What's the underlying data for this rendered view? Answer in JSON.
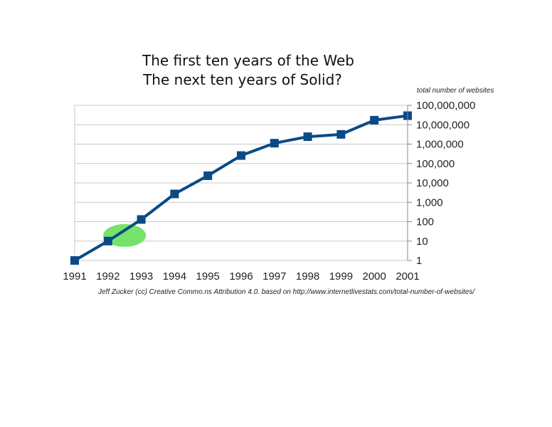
{
  "chart_data": {
    "type": "line",
    "title": "The first ten years of the Web",
    "subtitle": "The next ten years of Solid?",
    "ylabel": "total number of websites",
    "xlabel": "",
    "y_scale": "log",
    "ylim": [
      1,
      100000000
    ],
    "y_ticks": [
      1,
      10,
      100,
      1000,
      10000,
      100000,
      1000000,
      10000000,
      100000000
    ],
    "y_tick_labels": [
      "1",
      "10",
      "100",
      "1,000",
      "10,000",
      "100,000",
      "1,000,000",
      "10,000,000",
      "100,000,000"
    ],
    "y_axis_side": "right",
    "categories": [
      "1991",
      "1992",
      "1993",
      "1994",
      "1995",
      "1996",
      "1997",
      "1998",
      "1999",
      "2000",
      "2001"
    ],
    "series": [
      {
        "values": [
          1,
          10,
          130,
          2700,
          23500,
          257601,
          1117255,
          2410067,
          3177453,
          17087182,
          29254370
        ],
        "color": "#0b4a86",
        "marker": "square"
      }
    ],
    "grid": true,
    "legend": "none",
    "highlight": {
      "category": "1992.5",
      "color": "#66e05c",
      "shape": "ellipse"
    },
    "annotation": "Jeff Zucker (cc) Creative Commo.ns Attribution 4.0. based on http://www.internetlivestats.com/total-number-of-websites/"
  },
  "colors": {
    "line": "#0b4a86",
    "grid": "#c8c8c8",
    "highlight": "#66e05c"
  }
}
